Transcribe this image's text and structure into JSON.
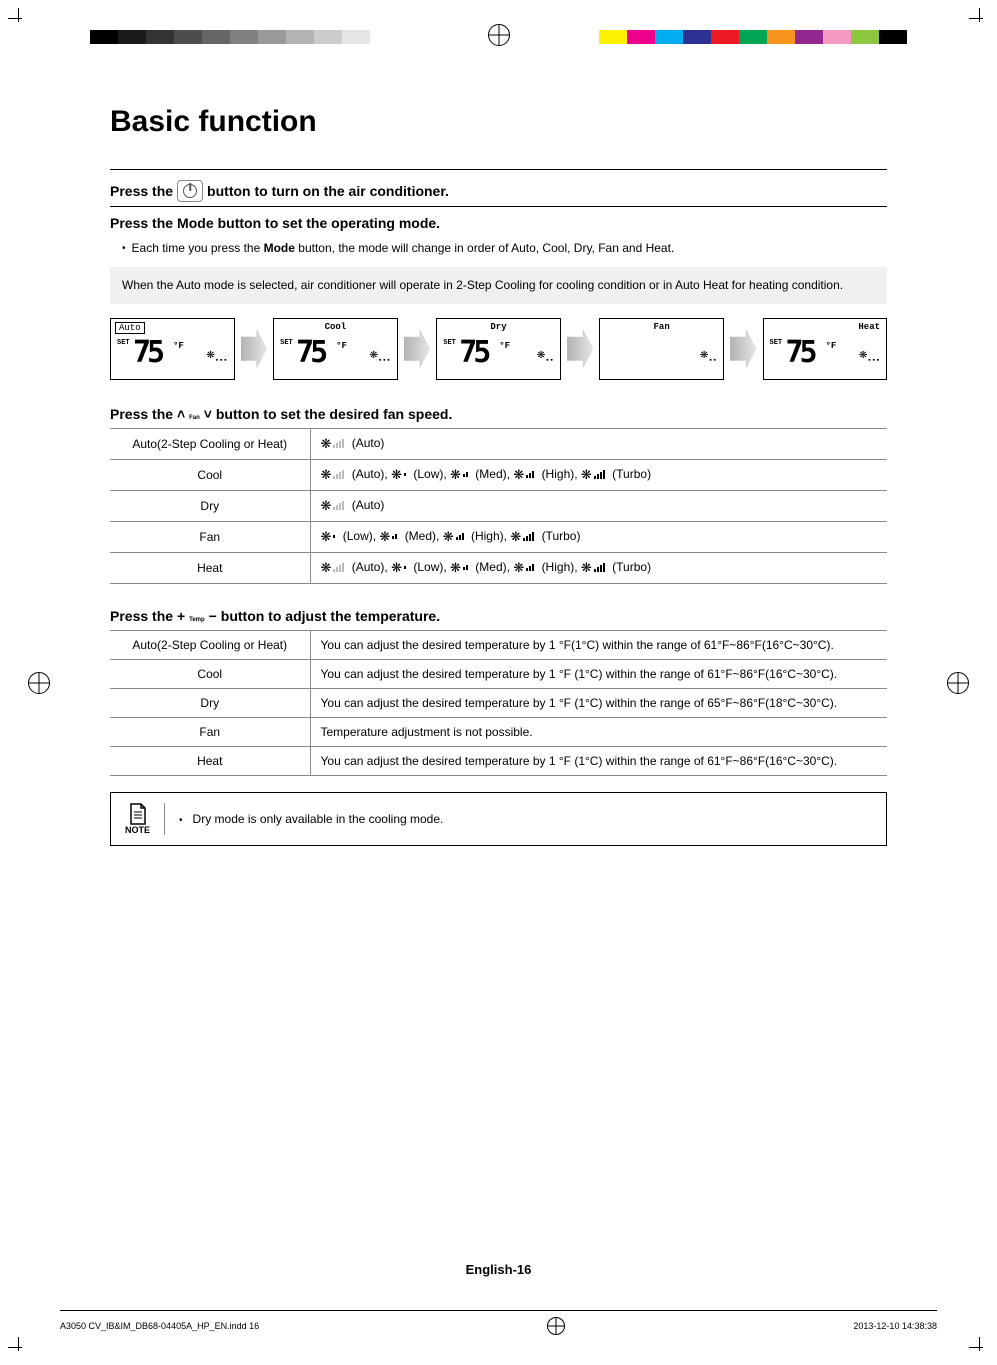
{
  "printer_marks": {
    "gray_shades": [
      "#000000",
      "#1a1a1a",
      "#333333",
      "#4d4d4d",
      "#666666",
      "#808080",
      "#999999",
      "#b3b3b3",
      "#cccccc",
      "#e6e6e6"
    ],
    "color_swatches": [
      "#fff200",
      "#ec008c",
      "#00aeef",
      "#2e3192",
      "#ed1c24",
      "#00a651",
      "#f7941d",
      "#92278f",
      "#f49ac1",
      "#8dc63f",
      "#000000"
    ]
  },
  "title": "Basic function",
  "step_power": {
    "pre": "Press the",
    "post": "button to turn on the air conditioner."
  },
  "step_mode": {
    "pre": "Press the",
    "btn_label": "Mode",
    "post": "button to set the operating mode.",
    "bullet": "Each time you press the",
    "bullet_bold": "Mode",
    "bullet_rest": "button, the mode will change in order of Auto, Cool, Dry, Fan and Heat."
  },
  "info_auto": "When the Auto mode is selected, air conditioner will operate in 2-Step Cooling for cooling condition or in Auto Heat for heating condition.",
  "modes": {
    "auto": {
      "label": "Auto",
      "set": "SET",
      "temp": "75",
      "unit": "°F"
    },
    "cool": {
      "label": "Cool",
      "set": "SET",
      "temp": "75",
      "unit": "°F"
    },
    "dry": {
      "label": "Dry",
      "set": "SET",
      "temp": "75",
      "unit": "°F"
    },
    "fan": {
      "label": "Fan"
    },
    "heat": {
      "label": "Heat",
      "set": "SET",
      "temp": "75",
      "unit": "°F"
    }
  },
  "step_fan": {
    "pre": "Press the",
    "btn_label": "Fan",
    "post": "button to set the desired fan speed."
  },
  "fan_table": {
    "rows": [
      {
        "mode": "Auto(2-Step Cooling or Heat)",
        "opts": [
          {
            "bars": 4,
            "dim": true,
            "label": "(Auto)"
          }
        ]
      },
      {
        "mode": "Cool",
        "opts": [
          {
            "bars": 4,
            "dim": true,
            "label": "(Auto),"
          },
          {
            "bars": 1,
            "label": "(Low),"
          },
          {
            "bars": 2,
            "label": "(Med),"
          },
          {
            "bars": 3,
            "label": "(High),"
          },
          {
            "bars": 4,
            "label": "(Turbo)"
          }
        ]
      },
      {
        "mode": "Dry",
        "opts": [
          {
            "bars": 4,
            "dim": true,
            "label": "(Auto)"
          }
        ]
      },
      {
        "mode": "Fan",
        "opts": [
          {
            "bars": 1,
            "label": "(Low),"
          },
          {
            "bars": 2,
            "label": "(Med),"
          },
          {
            "bars": 3,
            "label": "(High),"
          },
          {
            "bars": 4,
            "label": "(Turbo)"
          }
        ]
      },
      {
        "mode": "Heat",
        "opts": [
          {
            "bars": 4,
            "dim": true,
            "label": "(Auto),"
          },
          {
            "bars": 1,
            "label": "(Low),"
          },
          {
            "bars": 2,
            "label": "(Med),"
          },
          {
            "bars": 3,
            "label": "(High),"
          },
          {
            "bars": 4,
            "label": "(Turbo)"
          }
        ]
      }
    ]
  },
  "step_temp": {
    "pre": "Press the",
    "btn_top": "+",
    "btn_mid": "Temp",
    "btn_bot": "−",
    "post": "button to adjust the temperature."
  },
  "temp_table": {
    "rows": [
      {
        "mode": "Auto(2-Step Cooling or Heat)",
        "desc": "You can adjust the desired temperature by 1 °F(1°C) within the range of 61°F~86°F(16°C~30°C)."
      },
      {
        "mode": "Cool",
        "desc": "You can adjust the desired temperature by 1 °F (1°C) within the range of 61°F~86°F(16°C~30°C)."
      },
      {
        "mode": "Dry",
        "desc": "You can adjust the desired temperature by 1 °F (1°C) within the range of  65°F~86°F(18°C~30°C)."
      },
      {
        "mode": "Fan",
        "desc": "Temperature adjustment is not possible."
      },
      {
        "mode": "Heat",
        "desc": "You can adjust the desired temperature by 1 °F (1°C) within the range of 61°F~86°F(16°C~30°C)."
      }
    ]
  },
  "note": {
    "label": "NOTE",
    "text": "Dry mode is only available in the cooling mode."
  },
  "page_number": "English-16",
  "footer": {
    "left": "A3050 CV_IB&IM_DB68-04405A_HP_EN.indd   16",
    "right": "2013-12-10   14:38:38"
  },
  "colors": {
    "text": "#000000",
    "info_bg": "#f0f0f0",
    "border": "#888888"
  }
}
